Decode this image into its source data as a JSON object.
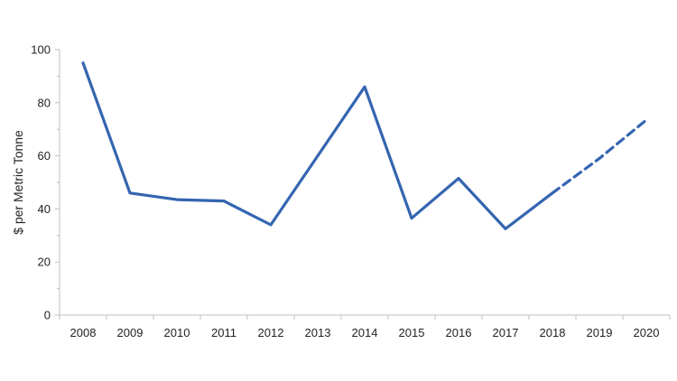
{
  "chart_data": {
    "type": "line",
    "title": "",
    "xlabel": "",
    "ylabel": "$ per Metric Tonne",
    "ylim": [
      0,
      100
    ],
    "yticks": [
      0,
      20,
      40,
      60,
      80,
      100
    ],
    "grid": false,
    "x": [
      "2008",
      "2009",
      "2010",
      "2011",
      "2012",
      "2013",
      "2014",
      "2015",
      "2016",
      "2017",
      "2018",
      "2019",
      "2020"
    ],
    "series": [
      {
        "style": "solid",
        "color": "#3465b0",
        "x": [
          "2008",
          "2009",
          "2010",
          "2011",
          "2012",
          "2013",
          "2014",
          "2015",
          "2016",
          "2017",
          "2018"
        ],
        "values": [
          95,
          46,
          43.5,
          43,
          34,
          60,
          86,
          36.5,
          51.5,
          32.5,
          46
        ]
      },
      {
        "style": "dashed",
        "color": "#3465b0",
        "x": [
          "2018",
          "2019",
          "2020"
        ],
        "values": [
          46,
          59,
          73.5
        ]
      }
    ]
  }
}
